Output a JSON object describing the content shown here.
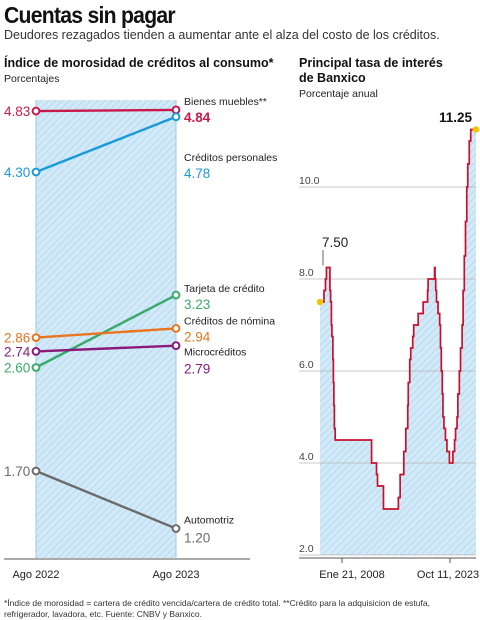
{
  "header": {
    "title": "Cuentas sin pagar",
    "subtitle": "Deudores rezagados tienden a aumentar ante el alza del costo de los créditos."
  },
  "left_panel": {
    "title": "Índice de morosidad de créditos al consumo*",
    "unit": "Porcentajes"
  },
  "right_panel": {
    "title_line1": "Principal tasa de interés",
    "title_line2": "de Banxico",
    "unit": "Porcentaje anual"
  },
  "footnote": "*Índice de morosidad = cartera de crédito vencida/cartera de crédito total. **Crédito para la adquisicion de estufa, refrigerador, lavadora, etc. Fuente: CNBV y Banxico.",
  "colors": {
    "band": "#d2e9f7",
    "band_hatch": "#a9d3ef",
    "rate_line": "#c8102e",
    "endpoint": "#f4c300"
  },
  "chart_data": [
    {
      "type": "line",
      "title": "Índice de morosidad de créditos al consumo*",
      "ylabel": "Porcentajes",
      "categories": [
        "Ago 2022",
        "Ago 2023"
      ],
      "ylim": [
        1.1,
        4.9
      ],
      "series": [
        {
          "name": "Bienes muebles**",
          "values": [
            4.83,
            4.84
          ],
          "start_label": "4.83",
          "end_label": "4.84",
          "color": "#c8194b",
          "bold_end": true
        },
        {
          "name": "Créditos personales",
          "values": [
            4.3,
            4.78
          ],
          "start_label": "4.30",
          "end_label": "4.78",
          "color": "#1a9ad6",
          "bold_end": false
        },
        {
          "name": "Tarjeta de crédito",
          "values": [
            2.6,
            3.23
          ],
          "start_label": "2.60",
          "end_label": "3.23",
          "color": "#3aaa6a",
          "bold_end": false
        },
        {
          "name": "Créditos de nómina",
          "values": [
            2.86,
            2.94
          ],
          "start_label": "2.86",
          "end_label": "2.94",
          "color": "#e8761e",
          "bold_end": false
        },
        {
          "name": "Microcréditos",
          "values": [
            2.74,
            2.79
          ],
          "start_label": "2.74",
          "end_label": "2.79",
          "color": "#8a1a7a",
          "bold_end": false
        },
        {
          "name": "Automotriz",
          "values": [
            1.7,
            1.2
          ],
          "start_label": "1.70",
          "end_label": "1.20",
          "color": "#6b6b6b",
          "bold_end": false
        }
      ]
    },
    {
      "type": "area",
      "title": "Principal tasa de interés de Banxico",
      "ylabel": "Porcentaje anual",
      "x_tick_labels": [
        "Ene 21, 2008",
        "Oct 11, 2023"
      ],
      "x_range": [
        2008.05,
        2023.78
      ],
      "ylim": [
        2.0,
        11.5
      ],
      "y_ticks": [
        2.0,
        4.0,
        6.0,
        8.0,
        10.0
      ],
      "y_tick_labels": [
        "2.0",
        "4.0",
        "6.0",
        "8.0",
        "10.0"
      ],
      "start_label": "7.50",
      "end_label": "11.25",
      "series": [
        {
          "points": [
            [
              2008.05,
              7.5
            ],
            [
              2008.45,
              7.75
            ],
            [
              2008.6,
              8.0
            ],
            [
              2008.7,
              8.25
            ],
            [
              2009.0,
              8.25
            ],
            [
              2009.05,
              7.75
            ],
            [
              2009.12,
              7.5
            ],
            [
              2009.2,
              7.0
            ],
            [
              2009.25,
              6.75
            ],
            [
              2009.35,
              6.25
            ],
            [
              2009.4,
              5.75
            ],
            [
              2009.45,
              5.25
            ],
            [
              2009.5,
              4.75
            ],
            [
              2009.58,
              4.5
            ],
            [
              2013.2,
              4.5
            ],
            [
              2013.25,
              4.0
            ],
            [
              2013.75,
              3.75
            ],
            [
              2013.85,
              3.5
            ],
            [
              2014.45,
              3.0
            ],
            [
              2015.95,
              3.25
            ],
            [
              2016.13,
              3.75
            ],
            [
              2016.5,
              4.25
            ],
            [
              2016.7,
              4.75
            ],
            [
              2016.9,
              5.25
            ],
            [
              2016.95,
              5.75
            ],
            [
              2017.1,
              6.25
            ],
            [
              2017.2,
              6.5
            ],
            [
              2017.4,
              6.75
            ],
            [
              2017.5,
              7.0
            ],
            [
              2017.95,
              7.25
            ],
            [
              2018.45,
              7.5
            ],
            [
              2018.9,
              7.75
            ],
            [
              2018.95,
              8.0
            ],
            [
              2019.6,
              8.25
            ],
            [
              2019.65,
              8.0
            ],
            [
              2019.72,
              7.75
            ],
            [
              2019.8,
              7.5
            ],
            [
              2019.95,
              7.25
            ],
            [
              2020.12,
              7.0
            ],
            [
              2020.2,
              6.5
            ],
            [
              2020.28,
              6.0
            ],
            [
              2020.38,
              5.5
            ],
            [
              2020.45,
              5.0
            ],
            [
              2020.55,
              4.75
            ],
            [
              2020.7,
              4.5
            ],
            [
              2020.85,
              4.25
            ],
            [
              2021.1,
              4.0
            ],
            [
              2021.45,
              4.25
            ],
            [
              2021.62,
              4.5
            ],
            [
              2021.72,
              4.75
            ],
            [
              2021.87,
              5.0
            ],
            [
              2021.95,
              5.5
            ],
            [
              2022.1,
              6.0
            ],
            [
              2022.22,
              6.5
            ],
            [
              2022.38,
              7.0
            ],
            [
              2022.48,
              7.75
            ],
            [
              2022.6,
              8.5
            ],
            [
              2022.72,
              9.25
            ],
            [
              2022.85,
              10.0
            ],
            [
              2022.95,
              10.5
            ],
            [
              2023.1,
              11.0
            ],
            [
              2023.25,
              11.25
            ],
            [
              2023.78,
              11.25
            ]
          ]
        }
      ]
    }
  ]
}
